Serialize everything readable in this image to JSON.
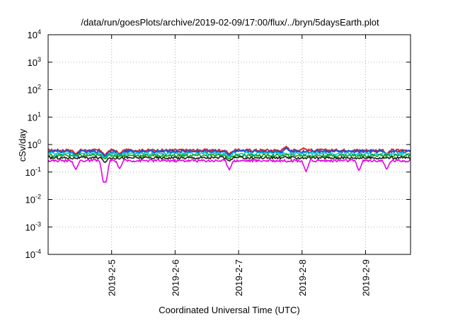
{
  "chart_data": {
    "type": "line",
    "title": "/data/run/goesPlots/archive/2019-02-09/17:00/flux/../bryn/5daysEarth.plot",
    "xlabel": "Coordinated Universal Time (UTC)",
    "ylabel": "cSv/day",
    "y_scale": "log",
    "ylim": [
      0.0001,
      10000
    ],
    "y_ticks": [
      {
        "value": 0.0001,
        "base": "10",
        "exp": "-4"
      },
      {
        "value": 0.001,
        "base": "10",
        "exp": "-3"
      },
      {
        "value": 0.01,
        "base": "10",
        "exp": "-2"
      },
      {
        "value": 0.1,
        "base": "10",
        "exp": "-1"
      },
      {
        "value": 1,
        "base": "10",
        "exp": "0"
      },
      {
        "value": 10,
        "base": "10",
        "exp": "1"
      },
      {
        "value": 100,
        "base": "10",
        "exp": "2"
      },
      {
        "value": 1000,
        "base": "10",
        "exp": "3"
      },
      {
        "value": 10000,
        "base": "10",
        "exp": "4"
      }
    ],
    "x_type": "date",
    "xlim": [
      "2019-02-04T00:00",
      "2019-02-09T17:00"
    ],
    "x_ticks": [
      "2019-2-5",
      "2019-2-6",
      "2019-2-7",
      "2019-2-8",
      "2019-2-9"
    ],
    "grid": true,
    "series": [
      {
        "color": "#d62728",
        "level": 0.62,
        "dips": [
          [
            "2019-02-04T10:30",
            0.45
          ],
          [
            "2019-02-04T21:30",
            0.4
          ],
          [
            "2019-02-05T03:00",
            0.45
          ],
          [
            "2019-02-06T20:30",
            0.45
          ],
          [
            "2019-02-09T08:00",
            0.45
          ]
        ],
        "peaks": [
          [
            "2019-02-07T18:00",
            0.85
          ],
          [
            "2019-02-08T00:30",
            0.75
          ]
        ]
      },
      {
        "color": "#1f4fd6",
        "level": 0.56,
        "dips": [
          [
            "2019-02-04T10:30",
            0.4
          ],
          [
            "2019-02-04T21:30",
            0.36
          ],
          [
            "2019-02-05T03:00",
            0.4
          ],
          [
            "2019-02-06T20:30",
            0.4
          ],
          [
            "2019-02-09T08:00",
            0.4
          ]
        ],
        "peaks": [
          [
            "2019-02-07T18:00",
            0.75
          ]
        ]
      },
      {
        "color": "#00d0d0",
        "level": 0.47,
        "dips": [
          [
            "2019-02-04T10:30",
            0.36
          ],
          [
            "2019-02-04T21:30",
            0.32
          ],
          [
            "2019-02-06T20:30",
            0.35
          ]
        ],
        "peaks": []
      },
      {
        "color": "#1aa01a",
        "level": 0.4,
        "dips": [
          [
            "2019-02-04T21:30",
            0.3
          ],
          [
            "2019-02-06T20:30",
            0.3
          ]
        ],
        "peaks": []
      },
      {
        "color": "#222222",
        "level": 0.33,
        "dips": [
          [
            "2019-02-04T21:30",
            0.22
          ],
          [
            "2019-02-06T20:30",
            0.25
          ]
        ],
        "peaks": []
      },
      {
        "color": "#e600e6",
        "level": 0.26,
        "dips": [
          [
            "2019-02-04T10:30",
            0.12
          ],
          [
            "2019-02-04T21:00",
            0.04
          ],
          [
            "2019-02-04T21:45",
            0.04
          ],
          [
            "2019-02-05T03:00",
            0.13
          ],
          [
            "2019-02-06T20:30",
            0.12
          ],
          [
            "2019-02-08T01:30",
            0.1
          ],
          [
            "2019-02-08T21:30",
            0.11
          ],
          [
            "2019-02-09T08:00",
            0.12
          ]
        ],
        "peaks": []
      }
    ]
  }
}
